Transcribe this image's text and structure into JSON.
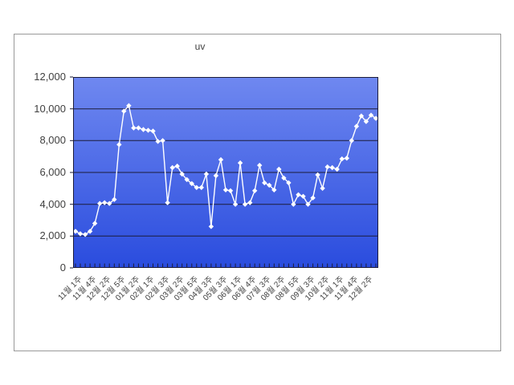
{
  "chart_data": {
    "type": "line",
    "title": "uv",
    "legend": "none",
    "grid": "horizontal",
    "ylim": [
      0,
      12000
    ],
    "y_tick_step": 2000,
    "y_ticks": [
      "12,000",
      "10,000",
      "8,000",
      "6,000",
      "4,000",
      "2,000",
      "0"
    ],
    "tick_labels": [
      "11월 1주",
      "11월 4주",
      "12월 2주",
      "12월 5주",
      "01월 2주",
      "02월 1주",
      "02월 3주",
      "03월 2주",
      "03월 5주",
      "04월 3주",
      "05월 3주",
      "06월 1주",
      "06월 4주",
      "07월 3주",
      "08월 2주",
      "08월 5주",
      "09월 3주",
      "10월 2주",
      "11월 1주",
      "11월 4주",
      "12월 2주"
    ],
    "label_interval": 3,
    "series": [
      {
        "name": "uv",
        "color": "#ffffff",
        "marker": "diamond",
        "values": [
          2300,
          2150,
          2100,
          2300,
          2800,
          4050,
          4100,
          4050,
          4300,
          7750,
          9850,
          10200,
          8800,
          8800,
          8700,
          8650,
          8600,
          7950,
          8000,
          4100,
          6300,
          6400,
          5900,
          5550,
          5300,
          5050,
          5050,
          5900,
          2600,
          5800,
          6800,
          4900,
          4850,
          4000,
          6600,
          4000,
          4100,
          4850,
          6450,
          5350,
          5200,
          4900,
          6200,
          5650,
          5350,
          4000,
          4600,
          4500,
          4000,
          4400,
          5850,
          5000,
          6350,
          6300,
          6200,
          6850,
          6900,
          8000,
          8900,
          9550,
          9200,
          9600,
          9400
        ]
      }
    ],
    "colors": {
      "plot_bg_top": "#6F88F0",
      "plot_bg_bottom": "#2A4CDE",
      "gridline": "#1c1c3a",
      "axis_text": "#404040",
      "frame_border": "#999999",
      "series": "#ffffff"
    }
  }
}
